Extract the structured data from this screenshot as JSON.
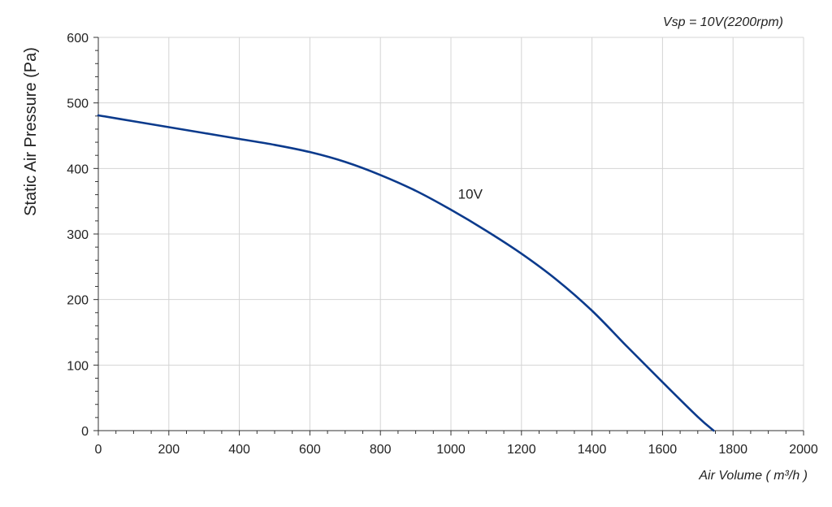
{
  "chart_data": {
    "type": "line",
    "subtitle": "Vsp = 10V(2200rpm)",
    "xlabel": "Air Volume ( m³/h )",
    "ylabel": "Static Air Pressure  (Pa)",
    "xlim": [
      0,
      2000
    ],
    "ylim": [
      0,
      600
    ],
    "xticks": [
      0,
      200,
      400,
      600,
      800,
      1000,
      1200,
      1400,
      1600,
      1800,
      2000
    ],
    "yticks": [
      0,
      100,
      200,
      300,
      400,
      500,
      600
    ],
    "grid": true,
    "colors": {
      "line": "#0b3a8c",
      "grid": "#d4d4d4",
      "axis": "#333333"
    },
    "series": [
      {
        "name": "10V",
        "x": [
          0,
          100,
          200,
          300,
          400,
          500,
          600,
          700,
          800,
          900,
          1000,
          1100,
          1200,
          1300,
          1400,
          1500,
          1600,
          1700,
          1745
        ],
        "y": [
          481,
          472,
          463,
          454,
          445,
          436,
          425,
          410,
          390,
          366,
          337,
          305,
          270,
          230,
          183,
          128,
          74,
          21,
          0
        ]
      }
    ],
    "annotations": [
      {
        "text": "10V",
        "x": 1020,
        "y": 354
      }
    ]
  }
}
